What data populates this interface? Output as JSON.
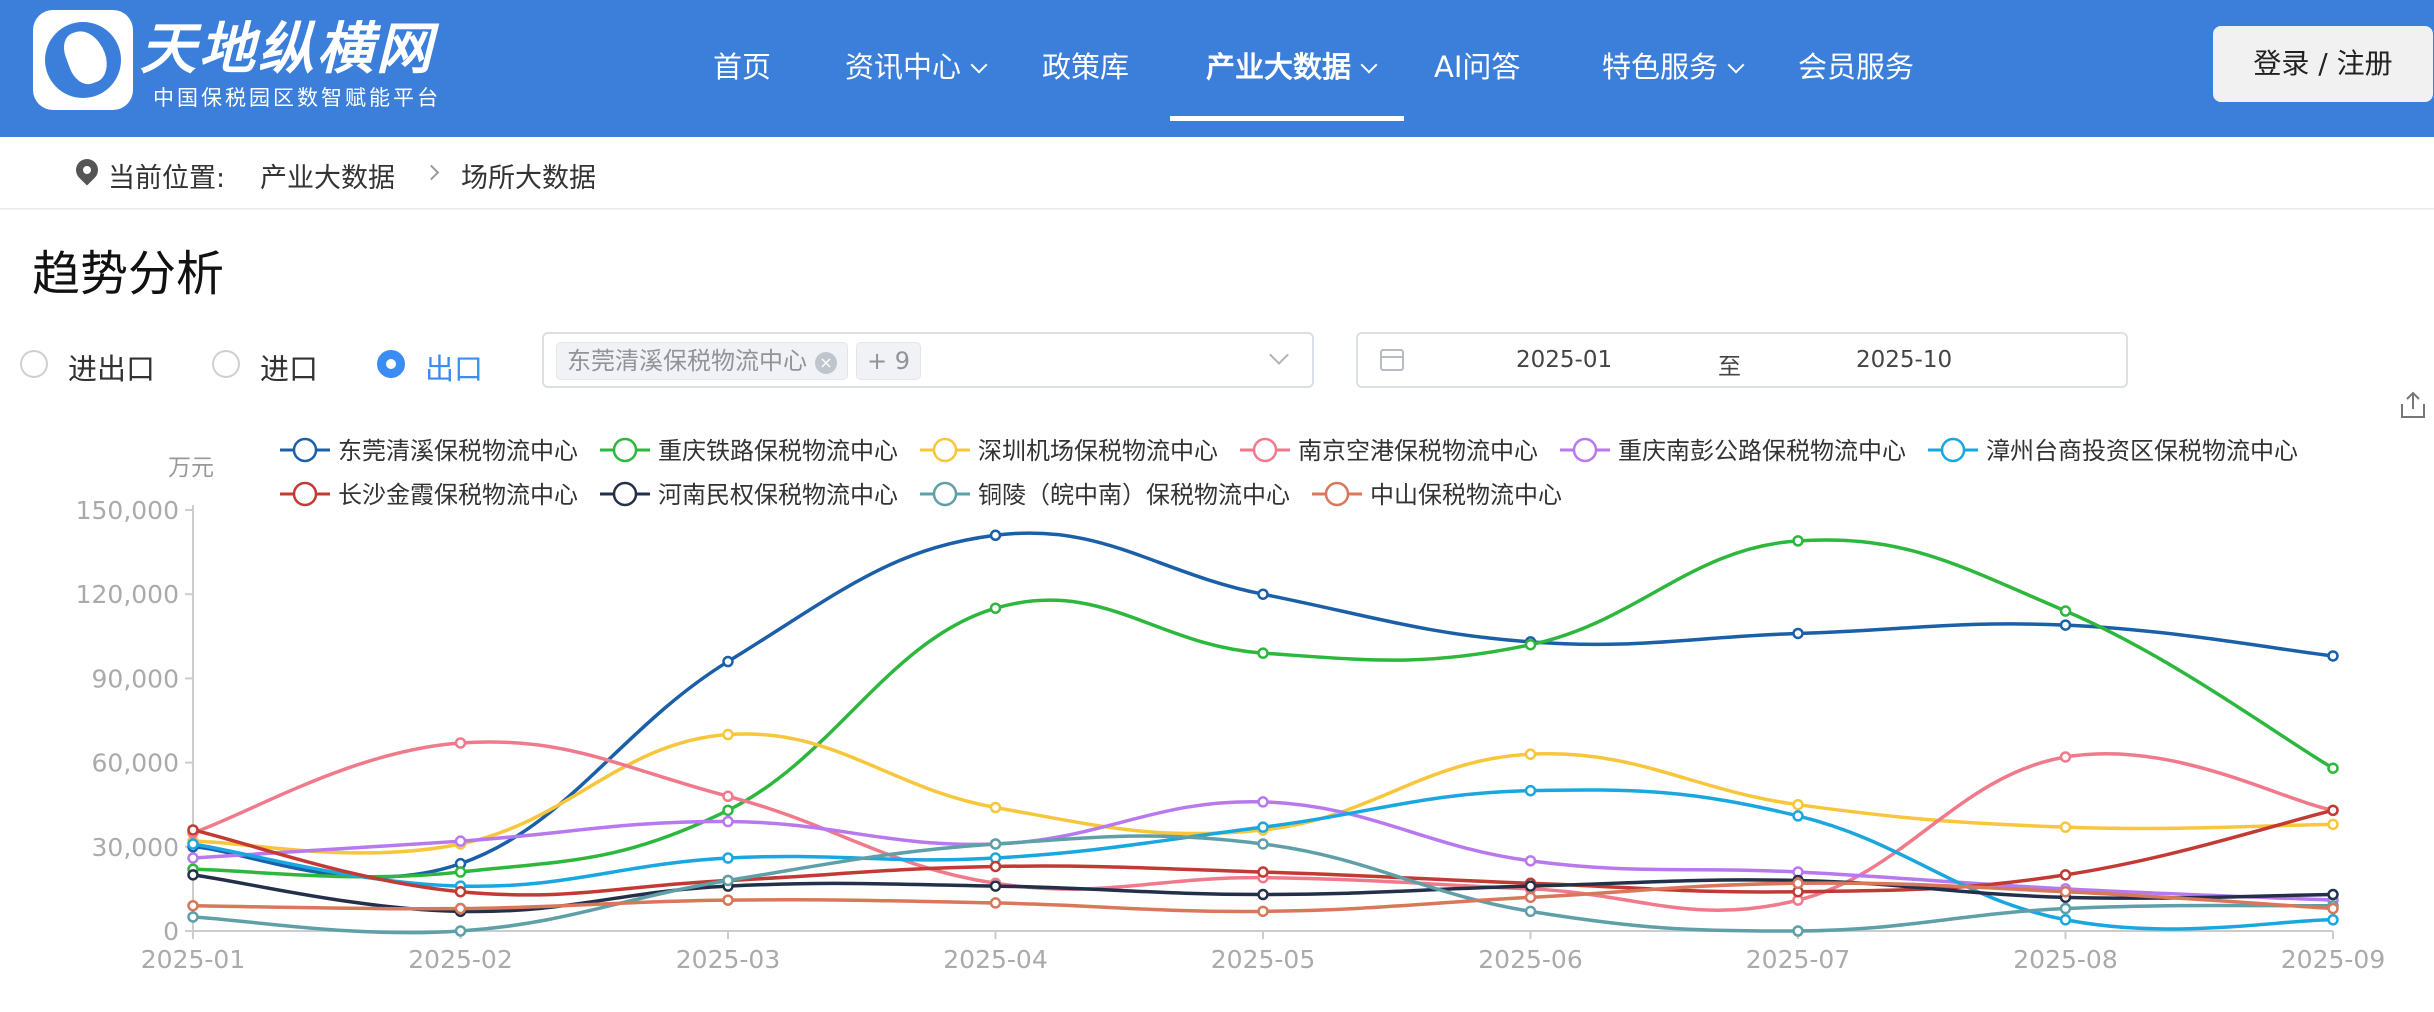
{
  "header": {
    "logo_title": "天地纵横网",
    "logo_subtitle": "中国保税园区数智赋能平台",
    "nav": [
      {
        "label": "首页",
        "caret": false,
        "active": false
      },
      {
        "label": "资讯中心",
        "caret": true,
        "active": false
      },
      {
        "label": "政策库",
        "caret": false,
        "active": false
      },
      {
        "label": "产业大数据",
        "caret": true,
        "active": true
      },
      {
        "label": "AI问答",
        "caret": false,
        "active": false
      },
      {
        "label": "特色服务",
        "caret": true,
        "active": false
      },
      {
        "label": "会员服务",
        "caret": false,
        "active": false
      }
    ],
    "login_label": "登录 / 注册"
  },
  "breadcrumb": {
    "prefix": "当前位置:",
    "items": [
      "产业大数据",
      "场所大数据"
    ]
  },
  "section_title": "趋势分析",
  "filters": {
    "radios": [
      {
        "label": "进出口",
        "checked": false
      },
      {
        "label": "进口",
        "checked": false
      },
      {
        "label": "出口",
        "checked": true
      }
    ],
    "select_tag": "东莞清溪保税物流中心",
    "select_more": "+ 9",
    "date_start": "2025-01",
    "date_sep": "至",
    "date_end": "2025-10"
  },
  "chart_data": {
    "type": "line",
    "ylabel": "万元",
    "ylim": [
      0,
      150000
    ],
    "yticks": [
      0,
      30000,
      60000,
      90000,
      120000,
      150000
    ],
    "ytick_labels": [
      "0",
      "30,000",
      "60,000",
      "90,000",
      "120,000",
      "150,000"
    ],
    "x": [
      "2025-01",
      "2025-02",
      "2025-03",
      "2025-04",
      "2025-05",
      "2025-06",
      "2025-07",
      "2025-08",
      "2025-09"
    ],
    "legend_position": "top",
    "series": [
      {
        "name": "东莞清溪保税物流中心",
        "color": "#1a5fa8",
        "values": [
          30000,
          24000,
          96000,
          141000,
          120000,
          103000,
          106000,
          109000,
          98000
        ]
      },
      {
        "name": "重庆铁路保税物流中心",
        "color": "#2db83d",
        "values": [
          22000,
          21000,
          43000,
          115000,
          99000,
          102000,
          139000,
          114000,
          58000
        ]
      },
      {
        "name": "深圳机场保税物流中心",
        "color": "#f7c63b",
        "values": [
          32000,
          31000,
          70000,
          44000,
          36000,
          63000,
          45000,
          37000,
          38000
        ]
      },
      {
        "name": "南京空港保税物流中心",
        "color": "#f07a8c",
        "values": [
          35000,
          67000,
          48000,
          17000,
          19000,
          15000,
          11000,
          62000,
          43000
        ]
      },
      {
        "name": "重庆南彭公路保税物流中心",
        "color": "#b879ef",
        "values": [
          26000,
          32000,
          39000,
          31000,
          46000,
          25000,
          21000,
          15000,
          11000
        ]
      },
      {
        "name": "漳州台商投资区保税物流中心",
        "color": "#1aa7e0",
        "values": [
          31000,
          16000,
          26000,
          26000,
          37000,
          50000,
          41000,
          4000,
          4000
        ]
      },
      {
        "name": "长沙金霞保税物流中心",
        "color": "#c23a34",
        "values": [
          36000,
          14000,
          18000,
          23000,
          21000,
          17000,
          14000,
          20000,
          43000
        ]
      },
      {
        "name": "河南民权保税物流中心",
        "color": "#24304a",
        "values": [
          20000,
          7000,
          16000,
          16000,
          13000,
          16000,
          18000,
          12000,
          13000
        ]
      },
      {
        "name": "铜陵（皖中南）保税物流中心",
        "color": "#5fa0a8",
        "values": [
          5000,
          0,
          18000,
          31000,
          31000,
          7000,
          0,
          8000,
          9000
        ]
      },
      {
        "name": "中山保税物流中心",
        "color": "#d9775a",
        "values": [
          9000,
          8000,
          11000,
          10000,
          7000,
          12000,
          17000,
          14000,
          8000
        ]
      }
    ]
  }
}
